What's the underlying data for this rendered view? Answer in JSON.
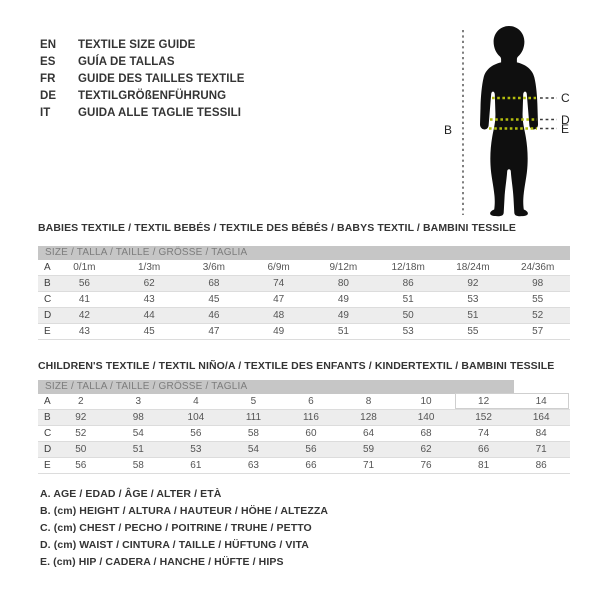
{
  "language_guide": {
    "items": [
      {
        "code": "EN",
        "label": "TEXTILE SIZE GUIDE"
      },
      {
        "code": "ES",
        "label": "GUÍA DE TALLAS"
      },
      {
        "code": "FR",
        "label": "GUIDE DES TAILLES TEXTILE"
      },
      {
        "code": "DE",
        "label": "TEXTILGRÖßENFÜHRUNG"
      },
      {
        "code": "IT",
        "label": "GUIDA ALLE TAGLIE TESSILI"
      }
    ]
  },
  "figure": {
    "label_b": "B",
    "label_c": "C",
    "label_d": "D",
    "label_e": "E"
  },
  "babies_table": {
    "title": "BABIES TEXTILE / TEXTIL BEBÉS / TEXTILE DES BÉBÉS / BABYS TEXTIL / BAMBINI TESSILE",
    "size_header": "SIZE / TALLA / TAILLE / GRÖSSE / TAGLIA",
    "rows": [
      {
        "label": "A",
        "values": [
          "0/1m",
          "1/3m",
          "3/6m",
          "6/9m",
          "9/12m",
          "12/18m",
          "18/24m",
          "24/36m"
        ]
      },
      {
        "label": "B",
        "values": [
          "56",
          "62",
          "68",
          "74",
          "80",
          "86",
          "92",
          "98"
        ]
      },
      {
        "label": "C",
        "values": [
          "41",
          "43",
          "45",
          "47",
          "49",
          "51",
          "53",
          "55"
        ]
      },
      {
        "label": "D",
        "values": [
          "42",
          "44",
          "46",
          "48",
          "49",
          "50",
          "51",
          "52"
        ]
      },
      {
        "label": "E",
        "values": [
          "43",
          "45",
          "47",
          "49",
          "51",
          "53",
          "55",
          "57"
        ]
      }
    ]
  },
  "children_table": {
    "title": "CHILDREN'S TEXTILE / TEXTIL NIÑO/A / TEXTILE DES ENFANTS / KINDERTEXTIL / BAMBINI TESSILE",
    "size_header": "SIZE / TALLA / TAILLE / GRÖSSE / TAGLIA",
    "rows": [
      {
        "label": "A",
        "values": [
          "2",
          "3",
          "4",
          "5",
          "6",
          "8",
          "10",
          "12",
          "14"
        ]
      },
      {
        "label": "B",
        "values": [
          "92",
          "98",
          "104",
          "111",
          "116",
          "128",
          "140",
          "152",
          "164"
        ]
      },
      {
        "label": "C",
        "values": [
          "52",
          "54",
          "56",
          "58",
          "60",
          "64",
          "68",
          "74",
          "84"
        ]
      },
      {
        "label": "D",
        "values": [
          "50",
          "51",
          "53",
          "54",
          "56",
          "59",
          "62",
          "66",
          "71"
        ]
      },
      {
        "label": "E",
        "values": [
          "56",
          "58",
          "61",
          "63",
          "66",
          "71",
          "76",
          "81",
          "86"
        ]
      }
    ]
  },
  "legend": {
    "lines": [
      "A. AGE / EDAD / ÂGE / ALTER / ETÀ",
      "B. (cm) HEIGHT / ALTURA / HAUTEUR / HÖHE / ALTEZZA",
      "C. (cm) CHEST / PECHO / POITRINE / TRUHE / PETTO",
      "D. (cm) WAIST / CINTURA / TAILLE / HÜFTUNG / VITA",
      "E. (cm) HIP / CADERA / HANCHE / HÜFTE / HIPS"
    ]
  },
  "colors": {
    "txt": "#343434",
    "celltxt": "#555555",
    "hdrbg": "#c6c6c6",
    "hdrtxt": "#7c7c7c",
    "altbg": "#ededed",
    "rowline": "#dcdcdc",
    "sil": "#0f0f0f",
    "measure": "#b3bd0e",
    "dashdark": "#3a3a3a"
  }
}
